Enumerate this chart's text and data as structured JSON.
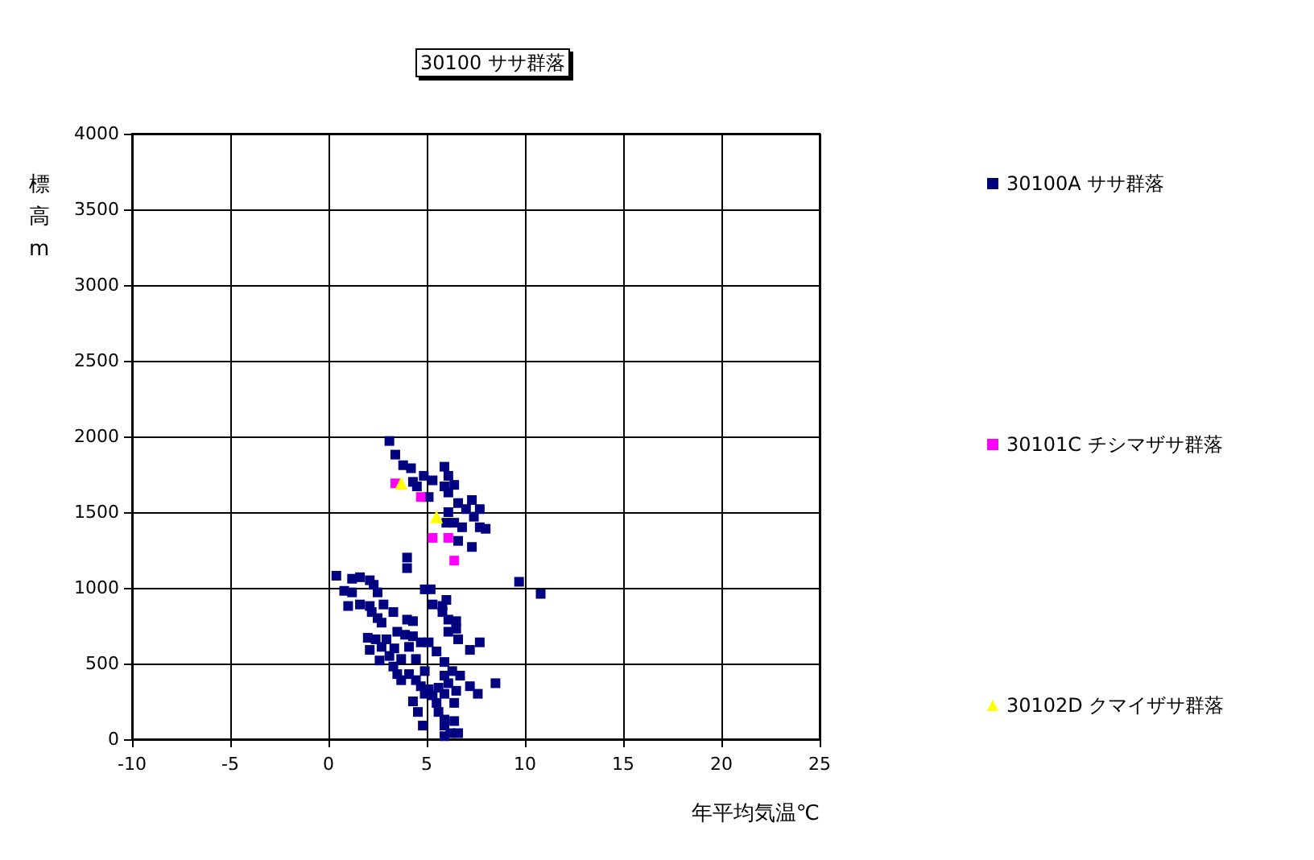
{
  "chart_data": {
    "type": "scatter",
    "title": "30100 ササ群落",
    "xlabel": "年平均気温℃",
    "ylabel": "標高m",
    "xlim": [
      -10,
      25
    ],
    "xticks": [
      -10,
      -5,
      0,
      5,
      10,
      15,
      20,
      25
    ],
    "ylim": [
      0,
      4000
    ],
    "yticks": [
      0,
      500,
      1000,
      1500,
      2000,
      2500,
      3000,
      3500,
      4000
    ],
    "grid": true,
    "legend": "right",
    "series": [
      {
        "name": "30100A ササ群落",
        "color": "#000080",
        "marker": "square",
        "x": [
          3.1,
          3.4,
          3.8,
          4.2,
          4.85,
          5.3,
          5.9,
          6.1,
          4.3,
          4.5,
          5.1,
          5.9,
          6.4,
          6.1,
          6.6,
          7.3,
          7.0,
          6.1,
          7.7,
          7.4,
          6.0,
          6.4,
          6.8,
          7.7,
          8.0,
          6.6,
          7.3,
          4.0,
          4.0,
          9.7,
          10.8,
          0.4,
          1.2,
          1.6,
          2.1,
          0.8,
          1.2,
          2.3,
          2.5,
          4.9,
          5.2,
          1.0,
          1.6,
          2.1,
          2.8,
          6.0,
          5.8,
          5.3,
          3.3,
          2.2,
          2.5,
          2.7,
          4.0,
          4.3,
          5.8,
          6.1,
          6.5,
          6.1,
          6.5,
          3.5,
          2.0,
          2.4,
          2.95,
          3.9,
          4.3,
          4.7,
          5.1,
          6.6,
          7.7,
          7.2,
          2.1,
          2.7,
          3.35,
          4.1,
          5.5,
          2.6,
          3.1,
          3.7,
          4.45,
          5.9,
          3.3,
          4.9,
          6.3,
          3.5,
          4.1,
          5.9,
          6.7,
          3.7,
          4.45,
          6.1,
          7.2,
          8.5,
          4.7,
          5.1,
          5.6,
          6.5,
          7.6,
          4.9,
          5.3,
          5.9,
          4.3,
          5.5,
          6.4,
          4.55,
          5.6,
          5.9,
          6.4,
          4.8,
          5.9,
          6.6,
          5.9,
          6.2
        ],
        "values": [
          1970,
          1880,
          1810,
          1790,
          1740,
          1710,
          1800,
          1740,
          1700,
          1670,
          1600,
          1670,
          1680,
          1630,
          1560,
          1580,
          1520,
          1500,
          1520,
          1470,
          1430,
          1430,
          1400,
          1400,
          1390,
          1310,
          1270,
          1200,
          1130,
          1040,
          960,
          1080,
          1060,
          1070,
          1050,
          980,
          970,
          1020,
          970,
          990,
          990,
          880,
          890,
          880,
          890,
          920,
          880,
          890,
          840,
          840,
          800,
          770,
          790,
          780,
          840,
          790,
          780,
          710,
          730,
          710,
          670,
          660,
          660,
          690,
          680,
          640,
          640,
          660,
          640,
          590,
          590,
          610,
          600,
          610,
          580,
          520,
          550,
          530,
          530,
          510,
          480,
          450,
          450,
          430,
          430,
          420,
          420,
          390,
          390,
          370,
          350,
          370,
          350,
          330,
          340,
          320,
          300,
          300,
          290,
          300,
          250,
          240,
          240,
          180,
          180,
          130,
          120,
          90,
          90,
          40,
          20,
          40
        ]
      },
      {
        "name": "30101C チシマザサ群落",
        "color": "#ff00ff",
        "marker": "square",
        "x": [
          3.4,
          4.7,
          5.3,
          6.1,
          6.4
        ],
        "values": [
          1690,
          1600,
          1330,
          1330,
          1180
        ]
      },
      {
        "name": "30102D クマイザサ群落",
        "color": "#ffff00",
        "marker": "triangle",
        "x": [
          3.7,
          5.5
        ],
        "values": [
          1690,
          1470
        ]
      }
    ]
  }
}
